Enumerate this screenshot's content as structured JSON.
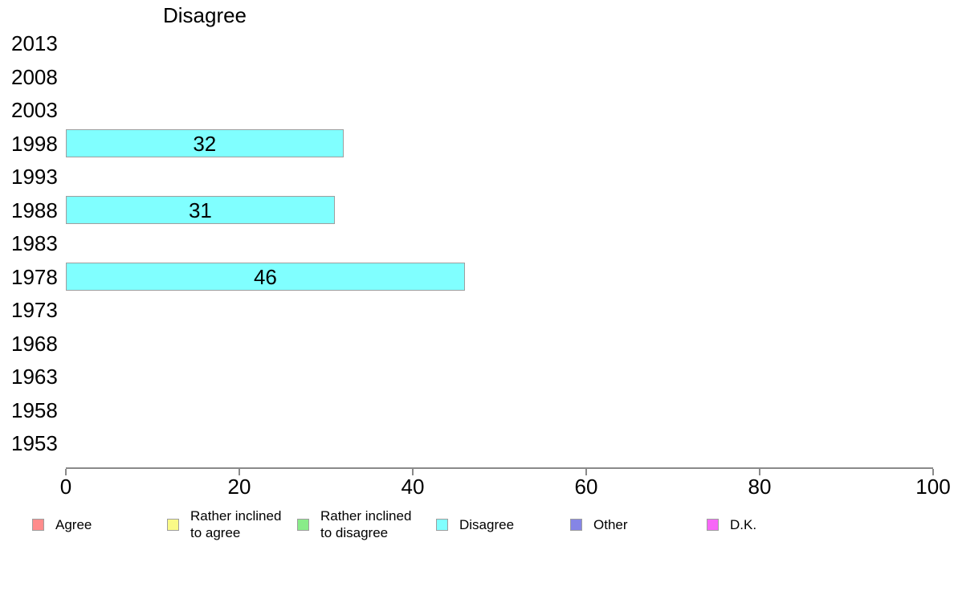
{
  "chart_data": {
    "type": "bar",
    "orientation": "horizontal",
    "title": "Disagree",
    "categories": [
      "2013",
      "2008",
      "2003",
      "1998",
      "1993",
      "1988",
      "1983",
      "1978",
      "1973",
      "1968",
      "1963",
      "1958",
      "1953"
    ],
    "values": [
      null,
      null,
      null,
      32,
      null,
      31,
      null,
      46,
      null,
      null,
      null,
      null,
      null
    ],
    "bar_value_labels": [
      "",
      "",
      "",
      "32",
      "",
      "31",
      "",
      "46",
      "",
      "",
      "",
      "",
      ""
    ],
    "xlabel": "",
    "ylabel": "",
    "xlim": [
      0,
      100
    ],
    "xticks": [
      0,
      20,
      40,
      60,
      80,
      100
    ],
    "grid": false,
    "bar_color": "#80ffff",
    "bar_border_color": "#9e9e9e",
    "axis_color": "#8a8a8a",
    "text_color": "#000000",
    "legend": {
      "position": "bottom",
      "entries": [
        {
          "name": "agree",
          "lines": [
            "Agree"
          ],
          "color": "#ff8c8c"
        },
        {
          "name": "rather-agree",
          "lines": [
            "Rather inclined",
            "to agree"
          ],
          "color": "#fafa87"
        },
        {
          "name": "rather-disagree",
          "lines": [
            "Rather inclined",
            "to disagree"
          ],
          "color": "#89ec89"
        },
        {
          "name": "disagree",
          "lines": [
            "Disagree"
          ],
          "color": "#80ffff"
        },
        {
          "name": "other",
          "lines": [
            "Other"
          ],
          "color": "#8585e6"
        },
        {
          "name": "dk",
          "lines": [
            "D.K."
          ],
          "color": "#f767f7"
        }
      ]
    }
  }
}
